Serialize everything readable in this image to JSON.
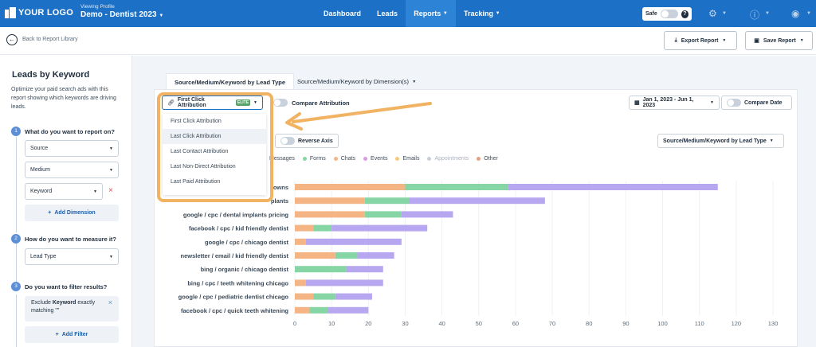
{
  "header": {
    "logo_text": "YOUR LOGO",
    "profile_caption": "Viewing Profile",
    "profile_name": "Demo - Dentist 2023",
    "nav": [
      "Dashboard",
      "Leads",
      "Reports",
      "Tracking"
    ],
    "active_nav": "Reports",
    "safe_label": "Safe",
    "help_glyph": "?"
  },
  "subbar": {
    "back_label": "Back to Report Library",
    "export_label": "Export Report",
    "save_label": "Save Report"
  },
  "sidebar": {
    "title": "Leads by Keyword",
    "description": "Optimize your paid search ads with this report showing which keywords are driving leads.",
    "steps": [
      {
        "num": "1",
        "question": "What do you want to report on?"
      },
      {
        "num": "2",
        "question": "How do you want to measure it?"
      },
      {
        "num": "3",
        "question": "Do you want to filter results?"
      }
    ],
    "dimensions": [
      "Source",
      "Medium",
      "Keyword"
    ],
    "remove_glyph": "×",
    "add_dimension_label": "Add Dimension",
    "measure": "Lead Type",
    "filter": {
      "prefix": "Exclude",
      "field": "Keyword",
      "mid": "exactly",
      "rest": "matching \"\""
    },
    "add_filter_label": "Add Filter"
  },
  "report": {
    "tabs": [
      "Source/Medium/Keyword by Lead Type",
      "Source/Medium/Keyword by Dimension(s)"
    ],
    "attribution_label": "First Click Attribution",
    "elite_badge": "ELITE",
    "compare_attribution_label": "Compare Attribution",
    "date_range": "Jan 1, 2023 - Jun 1, 2023",
    "compare_date_label": "Compare Date",
    "reverse_axis_label": "Reverse Axis",
    "view_select": "Source/Medium/Keyword by Lead Type",
    "attribution_options": [
      "First Click Attribution",
      "Last Click Attribution",
      "Last Contact Attribution",
      "Last Non-Direct Attribution",
      "Last Paid Attribution"
    ]
  },
  "colors": {
    "nav_blue": "#1c70c6",
    "calls": "#f5b483",
    "forms": "#86d5a4",
    "chats": "#f5b483",
    "emails": "#f5c88a",
    "messages": "#b7a6f0",
    "highlight": "#f1b261"
  },
  "chart_data": {
    "type": "bar",
    "orientation": "horizontal",
    "stacked": true,
    "legend_visible": [
      "Messages",
      "Forms",
      "Chats",
      "Events",
      "Emails",
      "Appointments",
      "Other"
    ],
    "legend_colors": [
      "#b7a6f0",
      "#86d5a4",
      "#f5b483",
      "#d69ce0",
      "#f7c97f",
      "#c9cfd8",
      "#e3a285"
    ],
    "categories": [
      "owns",
      "plants",
      "google / cpc / dental implants pricing",
      "facebook / cpc / kid friendly dentist",
      "google / cpc / chicago dentist",
      "newsletter / email / kid friendly dentist",
      "bing / organic / chicago dentist",
      "bing / cpc / teeth whitening chicago",
      "google / cpc / pediatric dentist chicago",
      "facebook / cpc / quick teeth whitening"
    ],
    "series": [
      {
        "name": "Chats",
        "color": "#f5b483",
        "values": [
          30,
          19,
          19,
          5,
          3,
          11,
          0,
          3,
          5,
          4
        ]
      },
      {
        "name": "Forms",
        "color": "#86d5a4",
        "values": [
          28,
          12,
          10,
          5,
          0,
          6,
          14,
          0,
          6,
          5
        ]
      },
      {
        "name": "Messages",
        "color": "#b7a6f0",
        "values": [
          57,
          37,
          14,
          26,
          26,
          10,
          10,
          21,
          10,
          11
        ]
      }
    ],
    "xlim": [
      0,
      130
    ],
    "xticks": [
      0,
      10,
      20,
      30,
      40,
      50,
      60,
      70,
      80,
      90,
      100,
      110,
      120,
      130
    ],
    "grid": true
  }
}
